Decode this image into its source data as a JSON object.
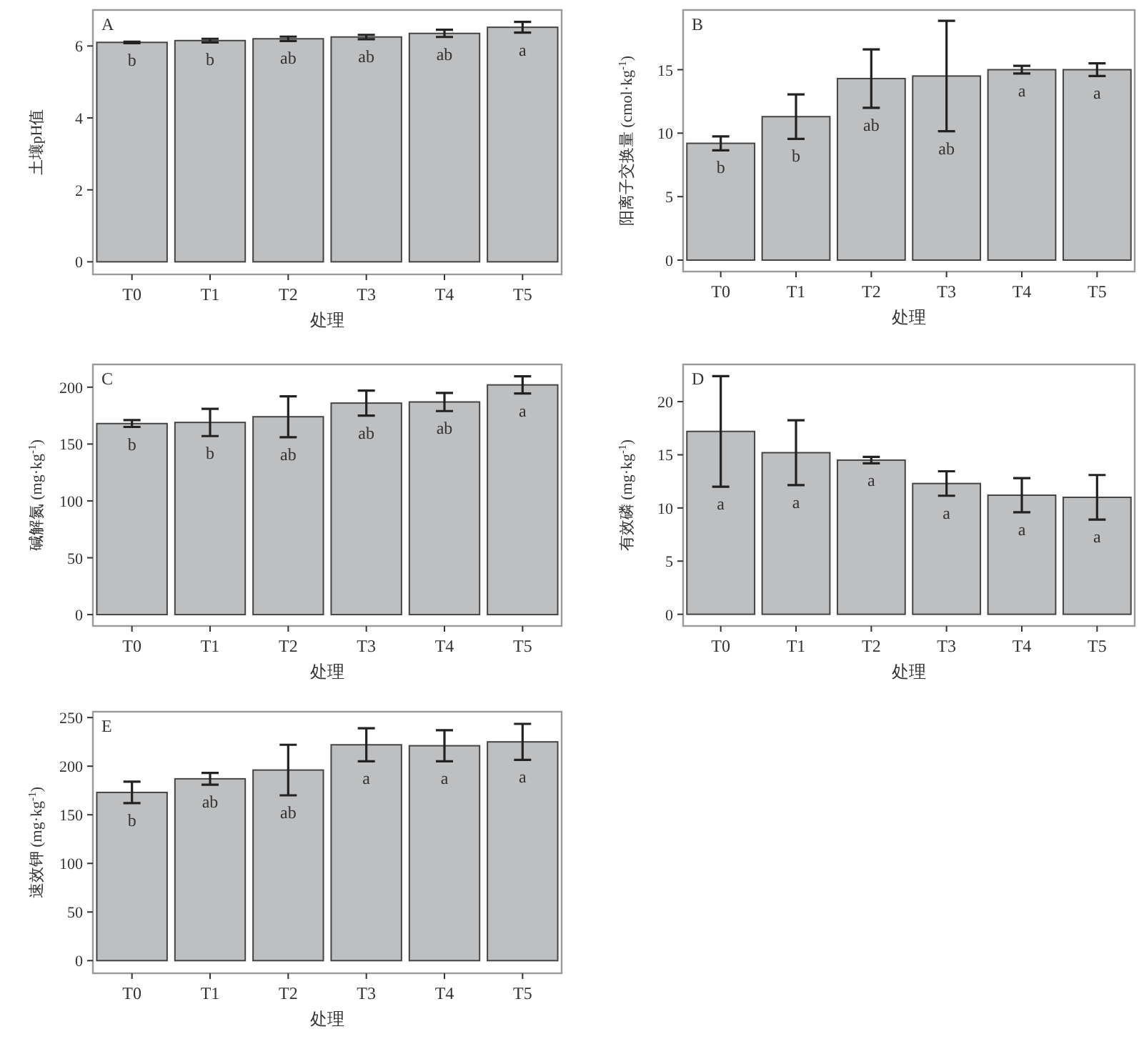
{
  "chart_data": [
    {
      "type": "bar",
      "title": "A",
      "xlabel": "处理",
      "ylabel": "土壤pH值",
      "categories": [
        "T0",
        "T1",
        "T2",
        "T3",
        "T4",
        "T5"
      ],
      "color": "#bdbfc1",
      "values": [
        6.1,
        6.15,
        6.2,
        6.25,
        6.35,
        6.52
      ],
      "errors": [
        0.02,
        0.05,
        0.06,
        0.06,
        0.1,
        0.15
      ],
      "ylim": [
        -0.35,
        7.0
      ],
      "yticks": [
        0,
        2,
        4,
        6
      ],
      "annotations": [
        "b",
        "b",
        "ab",
        "ab",
        "ab",
        "a"
      ]
    },
    {
      "type": "bar",
      "title": "B",
      "xlabel": "处理",
      "ylabel": "阳离子交换量 (cmol·kg$^{-1}$)",
      "categories": [
        "T0",
        "T1",
        "T2",
        "T3",
        "T4",
        "T5"
      ],
      "color": "#bdbfc1",
      "values": [
        9.2,
        11.3,
        14.3,
        14.5,
        15.0,
        15.0
      ],
      "errors": [
        0.55,
        1.75,
        2.3,
        4.35,
        0.3,
        0.5
      ],
      "ylim": [
        -0.9,
        19.7
      ],
      "yticks": [
        0,
        5,
        10,
        15
      ],
      "annotations": [
        "b",
        "b",
        "ab",
        "ab",
        "a",
        "a"
      ]
    },
    {
      "type": "bar",
      "title": "C",
      "xlabel": "处理",
      "ylabel": "碱解氮 (mg·kg$^{-1}$)",
      "categories": [
        "T0",
        "T1",
        "T2",
        "T3",
        "T4",
        "T5"
      ],
      "color": "#bdbfc1",
      "values": [
        168,
        169,
        174,
        186,
        187,
        202
      ],
      "errors": [
        3,
        12,
        18,
        11,
        8,
        7.5
      ],
      "ylim": [
        -10,
        220
      ],
      "yticks": [
        0,
        50,
        100,
        150,
        200
      ],
      "annotations": [
        "b",
        "b",
        "ab",
        "ab",
        "ab",
        "a"
      ]
    },
    {
      "type": "bar",
      "title": "D",
      "xlabel": "处理",
      "ylabel": "有效磷 (mg·kg$^{-1}$)",
      "categories": [
        "T0",
        "T1",
        "T2",
        "T3",
        "T4",
        "T5"
      ],
      "color": "#bdbfc1",
      "values": [
        17.2,
        15.2,
        14.5,
        12.3,
        11.2,
        11.0
      ],
      "errors": [
        5.2,
        3.05,
        0.3,
        1.15,
        1.6,
        2.1
      ],
      "ylim": [
        -1.1,
        23.5
      ],
      "yticks": [
        0,
        5,
        10,
        15,
        20
      ],
      "annotations": [
        "a",
        "a",
        "a",
        "a",
        "a",
        "a"
      ]
    },
    {
      "type": "bar",
      "title": "E",
      "xlabel": "处理",
      "ylabel": "速效钾 (mg·kg$^{-1}$)",
      "categories": [
        "T0",
        "T1",
        "T2",
        "T3",
        "T4",
        "T5"
      ],
      "color": "#bdbfc1",
      "values": [
        173,
        187,
        196,
        222,
        221,
        225
      ],
      "errors": [
        11,
        6,
        26,
        17,
        16,
        18.5
      ],
      "ylim": [
        -13,
        256
      ],
      "yticks": [
        0,
        50,
        100,
        150,
        200,
        250
      ],
      "annotations": [
        "b",
        "ab",
        "ab",
        "a",
        "a",
        "a"
      ]
    }
  ]
}
